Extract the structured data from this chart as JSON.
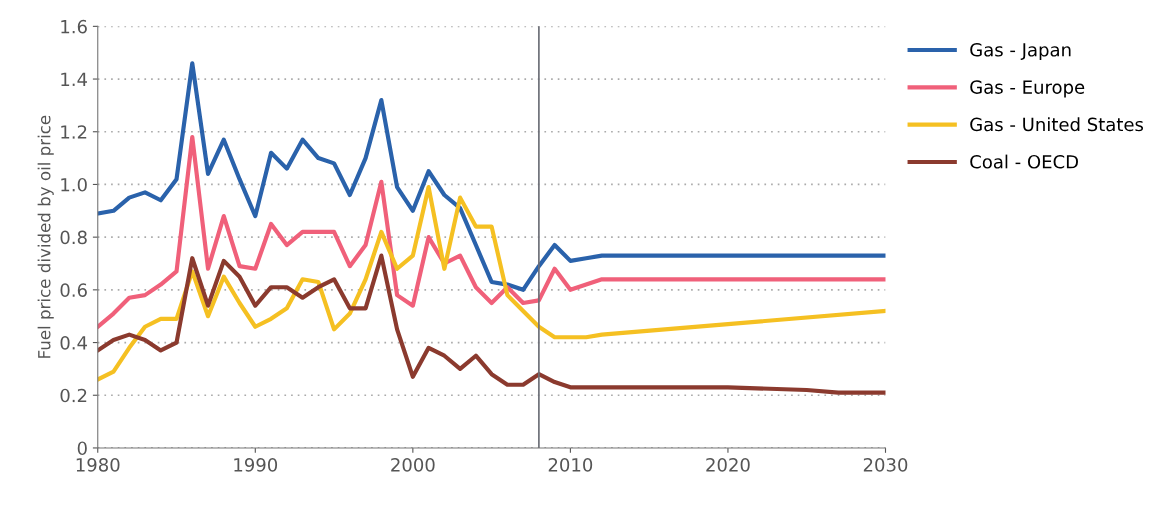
{
  "chart_data": {
    "type": "line",
    "ylabel": "Fuel price divided by oil price",
    "xlim": [
      1980,
      2030
    ],
    "xticks": [
      1980,
      1990,
      2000,
      2010,
      2020,
      2030
    ],
    "ylim": [
      0,
      1.6
    ],
    "yticks": [
      0,
      {
        "value": 0.2,
        "label": "0.2"
      },
      {
        "value": 0.4,
        "label": "0.4"
      },
      {
        "value": 0.6,
        "label": "0.6"
      },
      {
        "value": 0.8,
        "label": "0.8"
      },
      {
        "value": 1.0,
        "label": "1.0"
      },
      {
        "value": 1.2,
        "label": "1.2"
      },
      {
        "value": 1.4,
        "label": "1.4"
      },
      {
        "value": 1.6,
        "label": "1.6"
      }
    ],
    "grid": "y",
    "legend": "right",
    "marker": "none",
    "line_style": "solid",
    "ref_lines": [
      {
        "axis": "x",
        "value": 2008,
        "color": "#6b6e76"
      }
    ],
    "series": [
      {
        "name": "Gas - Japan",
        "color": "#2a62ab",
        "x": [
          1980,
          1981,
          1982,
          1983,
          1984,
          1985,
          1986,
          1987,
          1988,
          1989,
          1990,
          1991,
          1992,
          1993,
          1994,
          1995,
          1996,
          1997,
          1998,
          1999,
          2000,
          2001,
          2002,
          2003,
          2004,
          2005,
          2006,
          2007,
          2008,
          2009,
          2010,
          2011,
          2012,
          2020,
          2030
        ],
        "values": [
          0.89,
          0.9,
          0.95,
          0.97,
          0.94,
          1.02,
          1.46,
          1.04,
          1.17,
          1.02,
          0.88,
          1.12,
          1.06,
          1.17,
          1.1,
          1.08,
          0.96,
          1.1,
          1.32,
          0.99,
          0.9,
          1.05,
          0.96,
          0.91,
          0.77,
          0.63,
          0.62,
          0.6,
          0.69,
          0.77,
          0.71,
          0.72,
          0.73,
          0.73,
          0.73
        ]
      },
      {
        "name": "Gas - Europe",
        "color": "#f0607a",
        "x": [
          1980,
          1981,
          1982,
          1983,
          1984,
          1985,
          1986,
          1987,
          1988,
          1989,
          1990,
          1991,
          1992,
          1993,
          1994,
          1995,
          1996,
          1997,
          1998,
          1999,
          2000,
          2001,
          2002,
          2003,
          2004,
          2005,
          2006,
          2007,
          2008,
          2009,
          2010,
          2011,
          2012,
          2020,
          2030
        ],
        "values": [
          0.46,
          0.51,
          0.57,
          0.58,
          0.62,
          0.67,
          1.18,
          0.68,
          0.88,
          0.69,
          0.68,
          0.85,
          0.77,
          0.82,
          0.82,
          0.82,
          0.69,
          0.77,
          1.01,
          0.58,
          0.54,
          0.8,
          0.7,
          0.73,
          0.61,
          0.55,
          0.61,
          0.55,
          0.56,
          0.68,
          0.6,
          0.62,
          0.64,
          0.64,
          0.64
        ]
      },
      {
        "name": "Gas - United States",
        "color": "#f5c022",
        "x": [
          1980,
          1981,
          1982,
          1983,
          1984,
          1985,
          1986,
          1987,
          1988,
          1989,
          1990,
          1991,
          1992,
          1993,
          1994,
          1995,
          1996,
          1997,
          1998,
          1999,
          2000,
          2001,
          2002,
          2003,
          2004,
          2005,
          2006,
          2007,
          2008,
          2009,
          2010,
          2011,
          2012,
          2020,
          2030
        ],
        "values": [
          0.26,
          0.29,
          0.38,
          0.46,
          0.49,
          0.49,
          0.67,
          0.5,
          0.65,
          0.55,
          0.46,
          0.49,
          0.53,
          0.64,
          0.63,
          0.45,
          0.51,
          0.64,
          0.82,
          0.68,
          0.73,
          0.99,
          0.68,
          0.95,
          0.84,
          0.84,
          0.58,
          0.52,
          0.46,
          0.42,
          0.42,
          0.42,
          0.43,
          0.47,
          0.52
        ]
      },
      {
        "name": "Coal - OECD",
        "color": "#8b3a2e",
        "x": [
          1980,
          1981,
          1982,
          1983,
          1984,
          1985,
          1986,
          1987,
          1988,
          1989,
          1990,
          1991,
          1992,
          1993,
          1994,
          1995,
          1996,
          1997,
          1998,
          1999,
          2000,
          2001,
          2002,
          2003,
          2004,
          2005,
          2006,
          2007,
          2008,
          2009,
          2010,
          2011,
          2012,
          2020,
          2025,
          2027,
          2030
        ],
        "values": [
          0.37,
          0.41,
          0.43,
          0.41,
          0.37,
          0.4,
          0.72,
          0.54,
          0.71,
          0.65,
          0.54,
          0.61,
          0.61,
          0.57,
          0.61,
          0.64,
          0.53,
          0.53,
          0.73,
          0.45,
          0.27,
          0.38,
          0.35,
          0.3,
          0.35,
          0.28,
          0.24,
          0.24,
          0.28,
          0.25,
          0.23,
          0.23,
          0.23,
          0.23,
          0.22,
          0.21,
          0.21
        ]
      }
    ]
  }
}
